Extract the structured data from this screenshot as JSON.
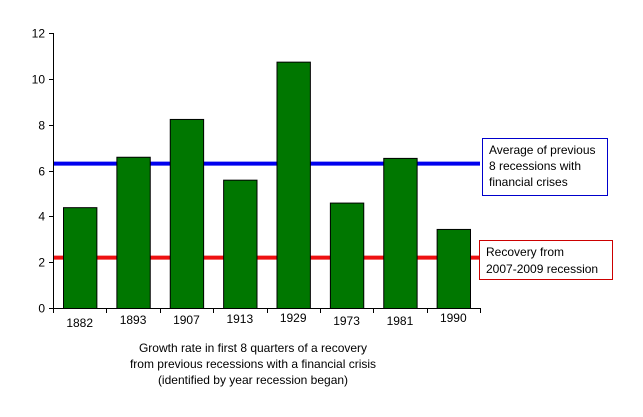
{
  "chart_data": {
    "type": "bar",
    "categories": [
      "1882",
      "1893",
      "1907",
      "1913",
      "1929",
      "1973",
      "1981",
      "1990"
    ],
    "values": [
      4.4,
      6.6,
      8.25,
      5.6,
      10.75,
      4.6,
      6.55,
      3.45
    ],
    "ylim": [
      0,
      12
    ],
    "yticks": [
      "0",
      "2",
      "4",
      "6",
      "8",
      "10",
      "12"
    ],
    "grid": false,
    "bar_color": "#007700",
    "xlabel_lines": [
      "Growth rate in first 8 quarters of a recovery",
      "from previous recessions with a financial crisis",
      "(identified by year recession began)"
    ],
    "reference_lines": [
      {
        "value": 6.3,
        "color": "#0000ee",
        "label_lines": [
          "Average of previous",
          "8 recessions with",
          "financial crises"
        ]
      },
      {
        "value": 2.2,
        "color": "#ee1111",
        "label_lines": [
          "Recovery from",
          "2007-2009 recession"
        ]
      }
    ]
  }
}
